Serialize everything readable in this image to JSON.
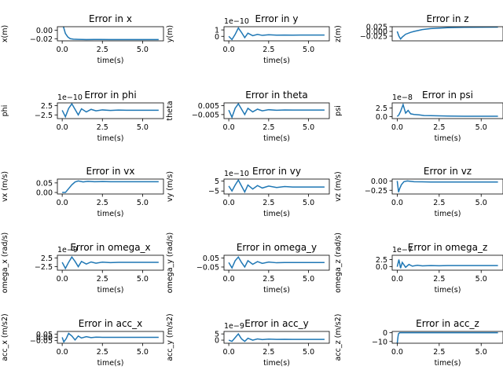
{
  "chart_data": [
    {
      "type": "line",
      "title": "Error in x",
      "xlabel": "time(s)",
      "ylabel": "x(m)",
      "offset": "",
      "xticks": [
        "0.0",
        "2.5",
        "5.0"
      ],
      "xlim": [
        -0.3,
        6.3
      ],
      "yticks": [
        {
          "v": 0.0,
          "label": "0.00"
        },
        {
          "v": -0.02,
          "label": "−0.02"
        }
      ],
      "ylim": [
        -0.025,
        0.008
      ],
      "series": [
        {
          "x": [
            0,
            0.1,
            0.2,
            0.35,
            0.5,
            0.7,
            1.0,
            1.5,
            2.0,
            3.0,
            4.0,
            5.0,
            6.0
          ],
          "y": [
            0.02,
            0.005,
            -0.008,
            -0.016,
            -0.02,
            -0.021,
            -0.0215,
            -0.022,
            -0.0218,
            -0.022,
            -0.022,
            -0.022,
            -0.022
          ]
        }
      ]
    },
    {
      "type": "line",
      "title": "Error in y",
      "xlabel": "time(s)",
      "ylabel": "y(m)",
      "offset": "1e−10",
      "xticks": [
        "0.0",
        "2.5",
        "5.0"
      ],
      "xlim": [
        -0.3,
        6.3
      ],
      "yticks": [
        {
          "v": 1,
          "label": "1"
        },
        {
          "v": 0,
          "label": "0"
        }
      ],
      "ylim": [
        -0.7,
        1.5
      ],
      "series": [
        {
          "x": [
            0,
            0.2,
            0.4,
            0.6,
            0.8,
            1.0,
            1.2,
            1.5,
            1.8,
            2.1,
            2.5,
            3.0,
            3.5,
            4.0,
            5.0,
            6.0
          ],
          "y": [
            0,
            -0.5,
            0.3,
            1.3,
            0.6,
            -0.2,
            0.5,
            0.1,
            0.3,
            0.15,
            0.25,
            0.18,
            0.2,
            0.19,
            0.2,
            0.2
          ]
        }
      ]
    },
    {
      "type": "line",
      "title": "Error in z",
      "xlabel": "",
      "ylabel": "z(m)",
      "offset": "",
      "xticks": [],
      "xlim": [
        -0.3,
        6.3
      ],
      "yticks": [
        {
          "v": 0.025,
          "label": "0.025"
        },
        {
          "v": 0.0,
          "label": "0.000"
        },
        {
          "v": -0.025,
          "label": "−0.025"
        }
      ],
      "ylim": [
        -0.05,
        0.025
      ],
      "series": [
        {
          "x": [
            0,
            0.1,
            0.2,
            0.3,
            0.5,
            0.8,
            1.0,
            1.5,
            2.0,
            3.0,
            4.0,
            6.0
          ],
          "y": [
            0.0,
            -0.025,
            -0.04,
            -0.03,
            -0.015,
            -0.005,
            0.0,
            0.01,
            0.015,
            0.02,
            0.022,
            0.023
          ]
        }
      ]
    },
    {
      "type": "line",
      "title": "Error in phi",
      "xlabel": "time(s)",
      "ylabel": "phi",
      "offset": "1e−10",
      "xticks": [
        "0.0",
        "2.5",
        "5.0"
      ],
      "xlim": [
        -0.3,
        6.3
      ],
      "yticks": [
        {
          "v": 2.5,
          "label": "2.5"
        },
        {
          "v": -2.5,
          "label": "−2.5"
        }
      ],
      "ylim": [
        -4.5,
        4.0
      ],
      "series": [
        {
          "x": [
            0,
            0.2,
            0.4,
            0.6,
            0.8,
            1.0,
            1.2,
            1.5,
            1.8,
            2.1,
            2.5,
            3.0,
            3.5,
            4.0,
            5.0,
            6.0
          ],
          "y": [
            0,
            -3.5,
            1.0,
            3.5,
            0.5,
            -2.5,
            0.8,
            -0.9,
            0.5,
            -0.3,
            0.2,
            -0.1,
            0.1,
            0,
            0,
            0
          ]
        }
      ]
    },
    {
      "type": "line",
      "title": "Error in theta",
      "xlabel": "time(s)",
      "ylabel": "theta",
      "offset": "",
      "xticks": [
        "0.0",
        "2.5",
        "5.0"
      ],
      "xlim": [
        -0.3,
        6.3
      ],
      "yticks": [
        {
          "v": 0.005,
          "label": "0.005"
        },
        {
          "v": -0.005,
          "label": "−0.005"
        }
      ],
      "ylim": [
        -0.0095,
        0.008
      ],
      "series": [
        {
          "x": [
            0,
            0.2,
            0.4,
            0.6,
            0.8,
            1.0,
            1.2,
            1.5,
            1.8,
            2.1,
            2.5,
            3.0,
            3.5,
            4.0,
            5.0,
            6.0
          ],
          "y": [
            0,
            -0.008,
            0.002,
            0.007,
            0.001,
            -0.005,
            0.002,
            -0.002,
            0.001,
            -0.0008,
            0.0004,
            -0.0002,
            0.0001,
            0,
            0,
            0
          ]
        }
      ]
    },
    {
      "type": "line",
      "title": "Error in psi",
      "xlabel": "time(s)",
      "ylabel": "psi",
      "offset": "1e−8",
      "xticks": [
        "0.0",
        "2.5",
        "5.0"
      ],
      "xlim": [
        -0.3,
        6.3
      ],
      "yticks": [
        {
          "v": 2.5,
          "label": "2.5"
        },
        {
          "v": 0.0,
          "label": "0.0"
        }
      ],
      "ylim": [
        -0.6,
        4.0
      ],
      "series": [
        {
          "x": [
            0,
            0.1,
            0.2,
            0.35,
            0.5,
            0.65,
            0.8,
            1.0,
            1.3,
            1.6,
            2.0,
            2.5,
            3.0,
            4.0,
            5.0,
            6.0
          ],
          "y": [
            0,
            0.5,
            1.5,
            3.5,
            1.0,
            1.8,
            0.8,
            0.6,
            0.5,
            0.3,
            0.25,
            0.2,
            0.15,
            0.1,
            0.1,
            0.1
          ]
        }
      ]
    },
    {
      "type": "line",
      "title": "Error in vx",
      "xlabel": "time(s)",
      "ylabel": "vx (m/s)",
      "offset": "",
      "xticks": [
        "0.0",
        "2.5",
        "5.0"
      ],
      "xlim": [
        -0.3,
        6.3
      ],
      "yticks": [
        {
          "v": 0.05,
          "label": "0.05"
        },
        {
          "v": 0.0,
          "label": "0.00"
        }
      ],
      "ylim": [
        -0.008,
        0.07
      ],
      "series": [
        {
          "x": [
            0,
            0.2,
            0.4,
            0.6,
            0.8,
            1.0,
            1.3,
            1.6,
            2.0,
            2.5,
            3.0,
            4.0,
            5.0,
            6.0
          ],
          "y": [
            0,
            0.0,
            0.02,
            0.04,
            0.055,
            0.06,
            0.055,
            0.058,
            0.056,
            0.057,
            0.056,
            0.056,
            0.056,
            0.056
          ]
        }
      ]
    },
    {
      "type": "line",
      "title": "Error in vy",
      "xlabel": "time(s)",
      "ylabel": "vy (m/s)",
      "offset": "1e−10",
      "xticks": [
        "0.0",
        "2.5",
        "5.0"
      ],
      "xlim": [
        -0.3,
        6.3
      ],
      "yticks": [
        {
          "v": 5,
          "label": "5"
        },
        {
          "v": -5,
          "label": "−5"
        }
      ],
      "ylim": [
        -8,
        7
      ],
      "series": [
        {
          "x": [
            0,
            0.2,
            0.4,
            0.6,
            0.8,
            1.0,
            1.2,
            1.5,
            1.8,
            2.1,
            2.5,
            3.0,
            3.5,
            4.0,
            5.0,
            6.0
          ],
          "y": [
            0,
            -5,
            1,
            6,
            0,
            -6,
            1,
            -3,
            0.5,
            -2,
            0,
            -1.5,
            -0.5,
            -1,
            -1,
            -1
          ]
        }
      ]
    },
    {
      "type": "line",
      "title": "Error in vz",
      "xlabel": "time(s)",
      "ylabel": "vz (m/s)",
      "offset": "",
      "xticks": [
        "0.0",
        "2.5",
        "5.0"
      ],
      "xlim": [
        -0.3,
        6.3
      ],
      "yticks": [
        {
          "v": 0.0,
          "label": "0.00"
        },
        {
          "v": -0.25,
          "label": "−0.25"
        }
      ],
      "ylim": [
        -0.35,
        0.05
      ],
      "series": [
        {
          "x": [
            0,
            0.08,
            0.15,
            0.25,
            0.4,
            0.6,
            0.8,
            1.0,
            1.5,
            2.0,
            3.0,
            4.0,
            5.0,
            6.0
          ],
          "y": [
            0,
            -0.3,
            -0.2,
            -0.1,
            -0.02,
            0.0,
            -0.01,
            -0.02,
            -0.025,
            -0.03,
            -0.03,
            -0.03,
            -0.03,
            -0.03
          ]
        }
      ]
    },
    {
      "type": "line",
      "title": "Error in omega_x",
      "xlabel": "time(s)",
      "ylabel": "omega_x (rad/s)",
      "offset": "1e−9",
      "xticks": [
        "0.0",
        "2.5",
        "5.0"
      ],
      "xlim": [
        -0.3,
        6.3
      ],
      "yticks": [
        {
          "v": 2.5,
          "label": "2.5"
        },
        {
          "v": -2.5,
          "label": "−2.5"
        }
      ],
      "ylim": [
        -4.5,
        4.0
      ],
      "series": [
        {
          "x": [
            0,
            0.2,
            0.4,
            0.6,
            0.8,
            1.0,
            1.2,
            1.5,
            1.8,
            2.1,
            2.5,
            3.0,
            3.5,
            4.0,
            5.0,
            6.0
          ],
          "y": [
            0,
            -3.5,
            0,
            3.0,
            0.5,
            -2.5,
            0.5,
            -1.0,
            0.2,
            -0.5,
            0.1,
            -0.2,
            0,
            0,
            0,
            0
          ]
        }
      ]
    },
    {
      "type": "line",
      "title": "Error in omega_y",
      "xlabel": "time(s)",
      "ylabel": "omega_y (rad/s)",
      "offset": "",
      "xticks": [
        "0.0",
        "2.5",
        "5.0"
      ],
      "xlim": [
        -0.3,
        6.3
      ],
      "yticks": [
        {
          "v": 0.05,
          "label": "0.05"
        },
        {
          "v": -0.05,
          "label": "−0.05"
        }
      ],
      "ylim": [
        -0.085,
        0.08
      ],
      "series": [
        {
          "x": [
            0,
            0.2,
            0.4,
            0.6,
            0.8,
            1.0,
            1.2,
            1.5,
            1.8,
            2.1,
            2.5,
            3.0,
            3.5,
            4.0,
            5.0,
            6.0
          ],
          "y": [
            0,
            -0.06,
            0.02,
            0.06,
            0.0,
            -0.05,
            0.02,
            -0.02,
            0.01,
            -0.01,
            0.005,
            -0.003,
            0,
            0,
            0,
            0
          ]
        }
      ]
    },
    {
      "type": "line",
      "title": "Error in omega_z",
      "xlabel": "time(s)",
      "ylabel": "omega_z (rad/s)",
      "offset": "1e−7",
      "xticks": [
        "0.0",
        "2.5",
        "5.0"
      ],
      "xlim": [
        -0.3,
        6.3
      ],
      "yticks": [
        {
          "v": 2.5,
          "label": "2.5"
        },
        {
          "v": 0.0,
          "label": "0.0"
        }
      ],
      "ylim": [
        -1.2,
        4.0
      ],
      "series": [
        {
          "x": [
            0,
            0.1,
            0.2,
            0.3,
            0.5,
            0.7,
            0.9,
            1.2,
            1.5,
            2.0,
            2.5,
            3.0,
            4.0,
            5.0,
            6.0
          ],
          "y": [
            0,
            2.5,
            -0.5,
            1.5,
            -0.2,
            0.8,
            0.2,
            0.5,
            0.3,
            0.4,
            0.35,
            0.4,
            0.4,
            0.4,
            0.4
          ]
        }
      ]
    },
    {
      "type": "line",
      "title": "Error in acc_x",
      "xlabel": "time(s)",
      "ylabel": "acc_x (m/s2)",
      "offset": "",
      "xticks": [
        "0.0",
        "2.5",
        "5.0"
      ],
      "xlim": [
        -0.3,
        6.3
      ],
      "yticks": [
        {
          "v": 0.05,
          "label": "0.05"
        },
        {
          "v": 0.0,
          "label": "0.00"
        },
        {
          "v": -0.05,
          "label": "−0.05"
        }
      ],
      "ylim": [
        -0.09,
        0.09
      ],
      "series": [
        {
          "x": [
            0,
            0.1,
            0.25,
            0.4,
            0.6,
            0.8,
            1.0,
            1.2,
            1.5,
            1.8,
            2.1,
            2.5,
            3.0,
            3.5,
            4.0,
            5.0,
            6.0
          ],
          "y": [
            0,
            -0.07,
            -0.02,
            0.06,
            0.02,
            -0.04,
            0.02,
            -0.01,
            0.01,
            -0.005,
            0.003,
            0,
            0,
            0,
            0,
            0,
            0
          ]
        }
      ]
    },
    {
      "type": "line",
      "title": "Error in acc_y",
      "xlabel": "time(s)",
      "ylabel": "acc_y (m/s2)",
      "offset": "1e−9",
      "xticks": [
        "0.0",
        "2.5",
        "5.0"
      ],
      "xlim": [
        -0.3,
        6.3
      ],
      "yticks": [
        {
          "v": 5,
          "label": "5"
        },
        {
          "v": 0,
          "label": "0"
        }
      ],
      "ylim": [
        -2.5,
        7
      ],
      "series": [
        {
          "x": [
            0,
            0.2,
            0.4,
            0.6,
            0.8,
            1.0,
            1.2,
            1.5,
            1.8,
            2.1,
            2.5,
            3.0,
            3.5,
            4.0,
            5.0,
            6.0
          ],
          "y": [
            0,
            -1,
            2,
            5,
            1,
            -1,
            1.5,
            0,
            1,
            0.4,
            0.8,
            0.6,
            0.7,
            0.6,
            0.6,
            0.6
          ]
        }
      ]
    },
    {
      "type": "line",
      "title": "Error in acc_z",
      "xlabel": "time(s)",
      "ylabel": "acc_z (m/s2)",
      "offset": "",
      "xticks": [
        "0.0",
        "2.5",
        "5.0"
      ],
      "xlim": [
        -0.3,
        6.3
      ],
      "yticks": [
        {
          "v": 0,
          "label": "0"
        },
        {
          "v": -10,
          "label": "−10"
        }
      ],
      "ylim": [
        -12,
        1.5
      ],
      "series": [
        {
          "x": [
            0,
            0.02,
            0.05,
            0.08,
            0.15,
            0.3,
            0.5,
            1.0,
            2.0,
            3.0,
            4.0,
            5.0,
            6.0
          ],
          "y": [
            -12,
            -9,
            -4,
            -1,
            0,
            0,
            0,
            0,
            0,
            0,
            0,
            0,
            0
          ]
        }
      ]
    }
  ]
}
